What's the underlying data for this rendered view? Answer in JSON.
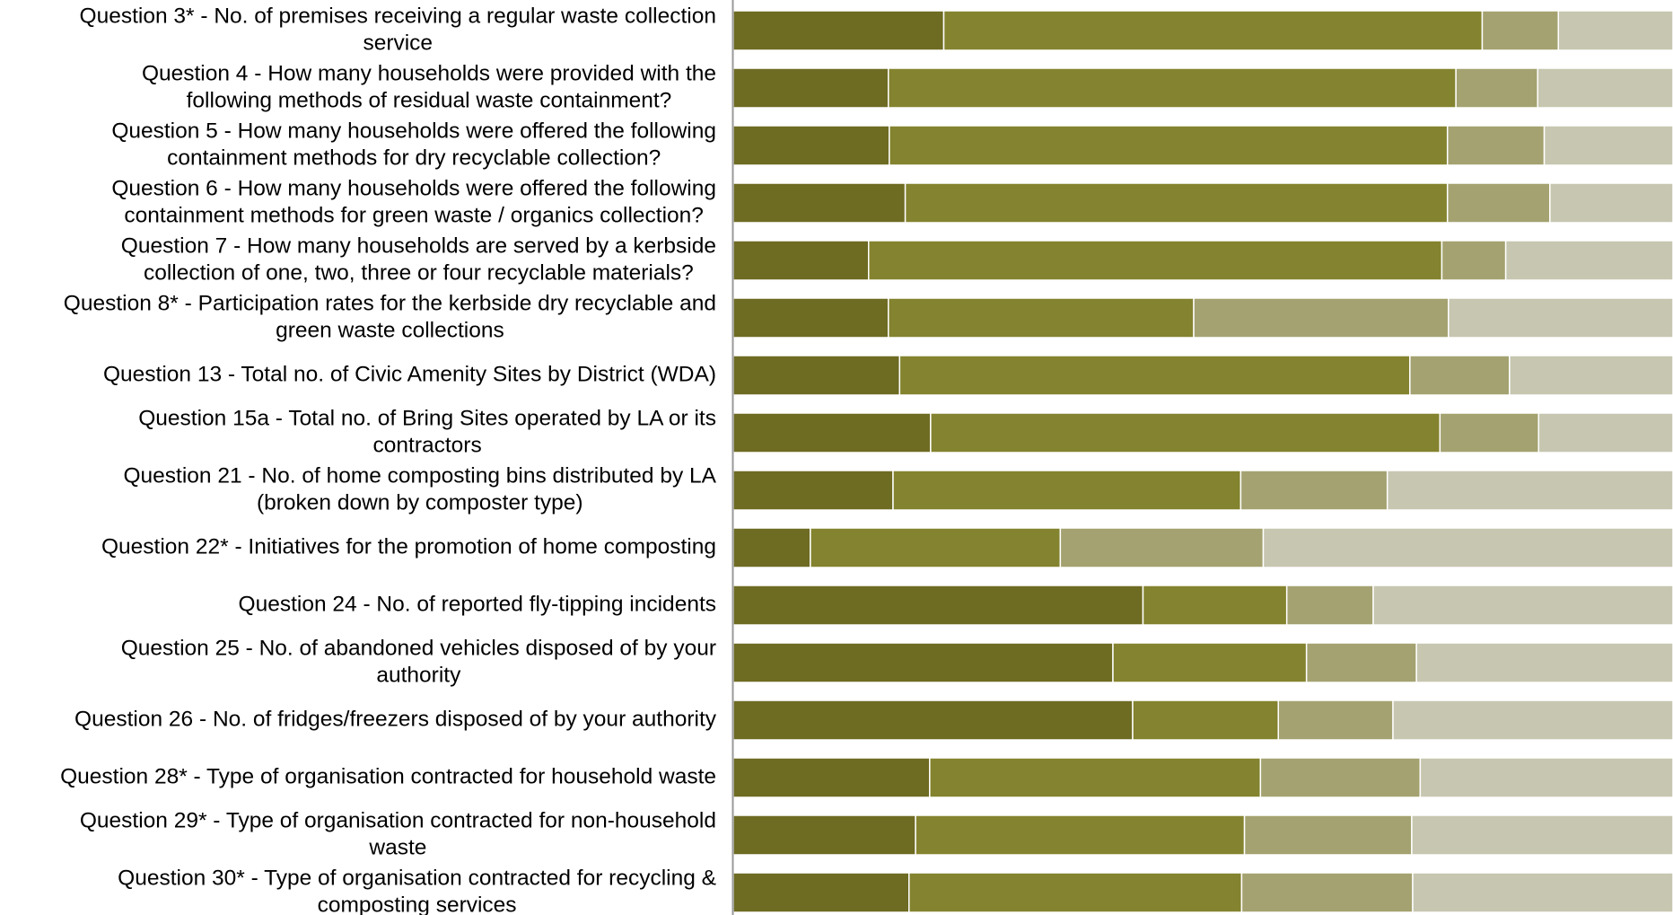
{
  "chart_data": {
    "type": "bar",
    "orientation": "horizontal",
    "stacked": true,
    "percent_stacked": true,
    "title": "",
    "xlabel": "",
    "ylabel": "",
    "xlim": [
      0,
      100
    ],
    "legend": "none",
    "grid": false,
    "categories": [
      [
        "Question 3* - No. of premises receiving a regular waste collection",
        "service"
      ],
      [
        "Question 4 - How many households were provided with the",
        "following methods of residual waste containment?"
      ],
      [
        "Question 5 - How many households were offered the following",
        "containment methods for dry recyclable collection?"
      ],
      [
        "Question 6 - How many households were offered the following",
        "containment methods for green waste / organics collection?"
      ],
      [
        "Question 7 - How many households are served by a kerbside",
        "collection of one, two, three or four recyclable materials?"
      ],
      [
        "Question 8* - Participation rates for the kerbside dry recyclable and",
        "green waste collections"
      ],
      [
        "Question 13 - Total no. of Civic Amenity Sites by District (WDA)"
      ],
      [
        "Question 15a - Total no. of Bring Sites operated by LA or its",
        "contractors"
      ],
      [
        "Question 21 - No. of home composting bins distributed by LA",
        "(broken down by composter type)"
      ],
      [
        "Question 22* - Initiatives for the promotion of home composting"
      ],
      [
        "Question 24 - No. of reported fly-tipping incidents"
      ],
      [
        "Question 25 - No. of abandoned vehicles disposed of by your",
        "authority"
      ],
      [
        "Question 26 - No. of fridges/freezers disposed of by your authority"
      ],
      [
        "Question 28* - Type of organisation contracted for household waste"
      ],
      [
        "Question 29* - Type of organisation contracted for non-household",
        "waste"
      ],
      [
        "Question 30* - Type of organisation contracted for recycling &",
        "composting services"
      ]
    ],
    "series": [
      {
        "color": "#6e6b23",
        "values": [
          22.4,
          16.5,
          16.6,
          18.3,
          14.4,
          16.5,
          17.7,
          21.0,
          17.0,
          8.2,
          43.6,
          40.4,
          42.5,
          20.9,
          19.4,
          18.7
        ]
      },
      {
        "color": "#84832f",
        "values": [
          57.3,
          60.4,
          59.4,
          57.7,
          61.0,
          32.5,
          54.3,
          54.2,
          37.0,
          26.6,
          15.3,
          20.6,
          15.5,
          35.2,
          35.0,
          35.4
        ]
      },
      {
        "color": "#a4a270",
        "values": [
          8.1,
          8.7,
          10.3,
          10.9,
          6.8,
          27.1,
          10.6,
          10.5,
          15.6,
          21.6,
          9.2,
          11.7,
          12.2,
          17.0,
          17.8,
          18.2
        ]
      },
      {
        "color": "#c7c6b0",
        "values": [
          12.2,
          14.4,
          13.7,
          13.1,
          17.8,
          23.9,
          17.4,
          14.3,
          30.4,
          43.6,
          31.9,
          27.3,
          29.8,
          26.9,
          27.8,
          27.7
        ]
      }
    ]
  }
}
